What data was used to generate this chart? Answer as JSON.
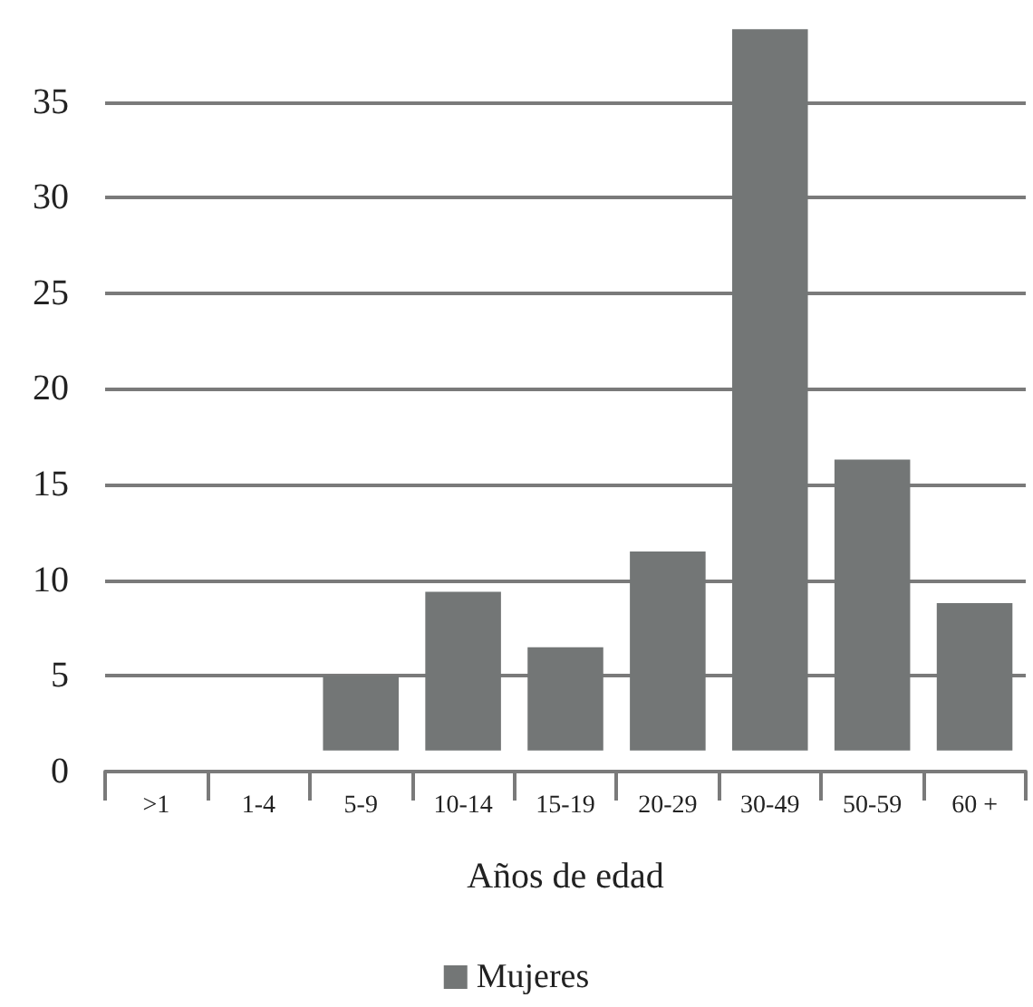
{
  "chart_data": {
    "type": "bar",
    "xlabel": "Años de edad",
    "categories": [
      ">1",
      "1-4",
      "5-9",
      "10-14",
      "15-19",
      "20-29",
      "30-49",
      "50-59",
      "60 +"
    ],
    "series": [
      {
        "name": "Mujeres",
        "color": "#737676",
        "values": [
          null,
          null,
          3.9,
          8.3,
          5.4,
          10.4,
          37.7,
          15.2,
          7.7
        ],
        "base": [
          null,
          null,
          1.1,
          1.1,
          1.1,
          1.1,
          1.1,
          1.1,
          1.1
        ]
      }
    ],
    "ylim": [
      0,
      39
    ],
    "yticks": [
      0,
      5,
      10,
      15,
      20,
      25,
      30,
      35
    ],
    "grid": "y",
    "legend": "bottom"
  }
}
